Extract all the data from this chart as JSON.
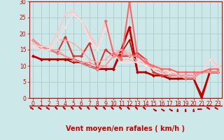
{
  "bg_color": "#cce8e8",
  "grid_color": "#aacccc",
  "line_color_dark": "#cc0000",
  "xlabel": "Vent moyen/en rafales ( km/h )",
  "xlim": [
    -0.5,
    23.5
  ],
  "ylim": [
    0,
    30
  ],
  "yticks": [
    0,
    5,
    10,
    15,
    20,
    25,
    30
  ],
  "xticks": [
    0,
    1,
    2,
    3,
    4,
    5,
    6,
    7,
    8,
    9,
    10,
    11,
    12,
    13,
    14,
    15,
    16,
    17,
    18,
    19,
    20,
    21,
    22,
    23
  ],
  "series": [
    {
      "x": [
        0,
        1,
        2,
        3,
        4,
        5,
        6,
        7,
        8,
        9,
        10,
        11,
        12,
        13,
        14,
        15,
        16,
        17,
        18,
        19,
        20,
        21,
        22,
        23
      ],
      "y": [
        13,
        12,
        12,
        12,
        12,
        12,
        11,
        10,
        9,
        9,
        9,
        15,
        22,
        8,
        8,
        7,
        7,
        6,
        6,
        6,
        6,
        0,
        8,
        8
      ],
      "color": "#cc0000",
      "lw": 2.0,
      "marker": "D",
      "ms": 2.5
    },
    {
      "x": [
        0,
        1,
        2,
        3,
        4,
        5,
        6,
        7,
        8,
        9,
        10,
        11,
        12,
        13,
        14,
        15,
        16,
        17,
        18,
        19,
        20,
        21,
        22,
        23
      ],
      "y": [
        13,
        12,
        12,
        12,
        12,
        11,
        11,
        10,
        9,
        9,
        9,
        14,
        18,
        8,
        8,
        7,
        7,
        6,
        6,
        6,
        6,
        1,
        8,
        8
      ],
      "color": "#bb0000",
      "lw": 1.2,
      "marker": "D",
      "ms": 2
    },
    {
      "x": [
        0,
        1,
        2,
        3,
        4,
        5,
        6,
        7,
        8,
        9,
        10,
        11,
        12,
        13,
        14,
        15,
        16,
        17,
        18,
        19,
        20,
        21,
        22,
        23
      ],
      "y": [
        18,
        16,
        15,
        14,
        19,
        13,
        13,
        17,
        9,
        15,
        13,
        13,
        13,
        14,
        12,
        8,
        7,
        7,
        7,
        7,
        7,
        8,
        8,
        8
      ],
      "color": "#dd3333",
      "lw": 1.5,
      "marker": "D",
      "ms": 2.5
    },
    {
      "x": [
        0,
        1,
        2,
        3,
        4,
        5,
        6,
        7,
        8,
        9,
        10,
        11,
        12,
        13,
        14,
        15,
        16,
        17,
        18,
        19,
        20,
        21,
        22,
        23
      ],
      "y": [
        18,
        15,
        15,
        14,
        13,
        12,
        11,
        11,
        10,
        10,
        13,
        14,
        13,
        13,
        12,
        9,
        8,
        8,
        7,
        7,
        7,
        8,
        8,
        8
      ],
      "color": "#ff8888",
      "lw": 1.0,
      "marker": "D",
      "ms": 2
    },
    {
      "x": [
        0,
        1,
        2,
        3,
        4,
        5,
        6,
        7,
        8,
        9,
        10,
        11,
        12,
        13,
        14,
        15,
        16,
        17,
        18,
        19,
        20,
        21,
        22,
        23
      ],
      "y": [
        18,
        16,
        15,
        15,
        13,
        12,
        11,
        10,
        9,
        10,
        13,
        15,
        13,
        13,
        11,
        9,
        8,
        7,
        7,
        6,
        6,
        8,
        8,
        8
      ],
      "color": "#ff9999",
      "lw": 1.0,
      "marker": "D",
      "ms": 2
    },
    {
      "x": [
        0,
        1,
        2,
        3,
        4,
        5,
        6,
        7,
        8,
        9,
        10,
        11,
        12,
        13,
        14,
        15,
        16,
        17,
        18,
        19,
        20,
        21,
        22,
        23
      ],
      "y": [
        16,
        15,
        15,
        18,
        18,
        17,
        15,
        12,
        11,
        12,
        14,
        15,
        14,
        11,
        11,
        10,
        8,
        8,
        7,
        7,
        7,
        8,
        12,
        10
      ],
      "color": "#ffaaaa",
      "lw": 1.0,
      "marker": "D",
      "ms": 2
    },
    {
      "x": [
        0,
        1,
        2,
        3,
        4,
        5,
        6,
        7,
        8,
        9,
        10,
        11,
        12,
        13,
        14,
        15,
        16,
        17,
        18,
        19,
        20,
        21,
        22,
        23
      ],
      "y": [
        17,
        16,
        16,
        20,
        26,
        27,
        24,
        20,
        16,
        24,
        14,
        12,
        12,
        11,
        11,
        10,
        9,
        9,
        8,
        8,
        8,
        8,
        12,
        10
      ],
      "color": "#ffbbbb",
      "lw": 1.0,
      "marker": "D",
      "ms": 2
    },
    {
      "x": [
        0,
        1,
        2,
        3,
        4,
        5,
        6,
        7,
        8,
        9,
        10,
        11,
        12,
        13,
        14,
        15,
        16,
        17,
        18,
        19,
        20,
        21,
        22,
        23
      ],
      "y": [
        16,
        16,
        16,
        20,
        26,
        27,
        24,
        19,
        16,
        24,
        14,
        11,
        11,
        11,
        10,
        9,
        9,
        9,
        8,
        8,
        8,
        8,
        12,
        10
      ],
      "color": "#ffcccc",
      "lw": 1.0,
      "marker": "D",
      "ms": 2
    },
    {
      "x": [
        0,
        1,
        2,
        3,
        4,
        5,
        6,
        7,
        8,
        9,
        10,
        11,
        12,
        13,
        14,
        15,
        16,
        17,
        18,
        19,
        20,
        21,
        22,
        23
      ],
      "y": [
        16,
        15,
        15,
        18,
        22,
        26,
        24,
        18,
        15,
        22,
        14,
        11,
        11,
        11,
        10,
        9,
        9,
        8,
        8,
        8,
        8,
        8,
        12,
        9
      ],
      "color": "#ffdddd",
      "lw": 1.0,
      "marker": "D",
      "ms": 2
    },
    {
      "x": [
        9,
        10,
        11,
        12,
        13,
        14,
        15,
        16,
        17,
        18,
        19,
        20,
        21,
        22,
        23
      ],
      "y": [
        24,
        14,
        12,
        30,
        13,
        11,
        10,
        9,
        9,
        8,
        8,
        8,
        8,
        9,
        9
      ],
      "color": "#ff6666",
      "lw": 1.5,
      "marker": "D",
      "ms": 2.5
    }
  ],
  "arrow_angles_deg": [
    225,
    225,
    225,
    210,
    210,
    210,
    210,
    210,
    210,
    210,
    210,
    210,
    210,
    210,
    215,
    45,
    45,
    45,
    0,
    0,
    0,
    270,
    225,
    225
  ],
  "label_fontsize": 7,
  "tick_fontsize": 5.5
}
